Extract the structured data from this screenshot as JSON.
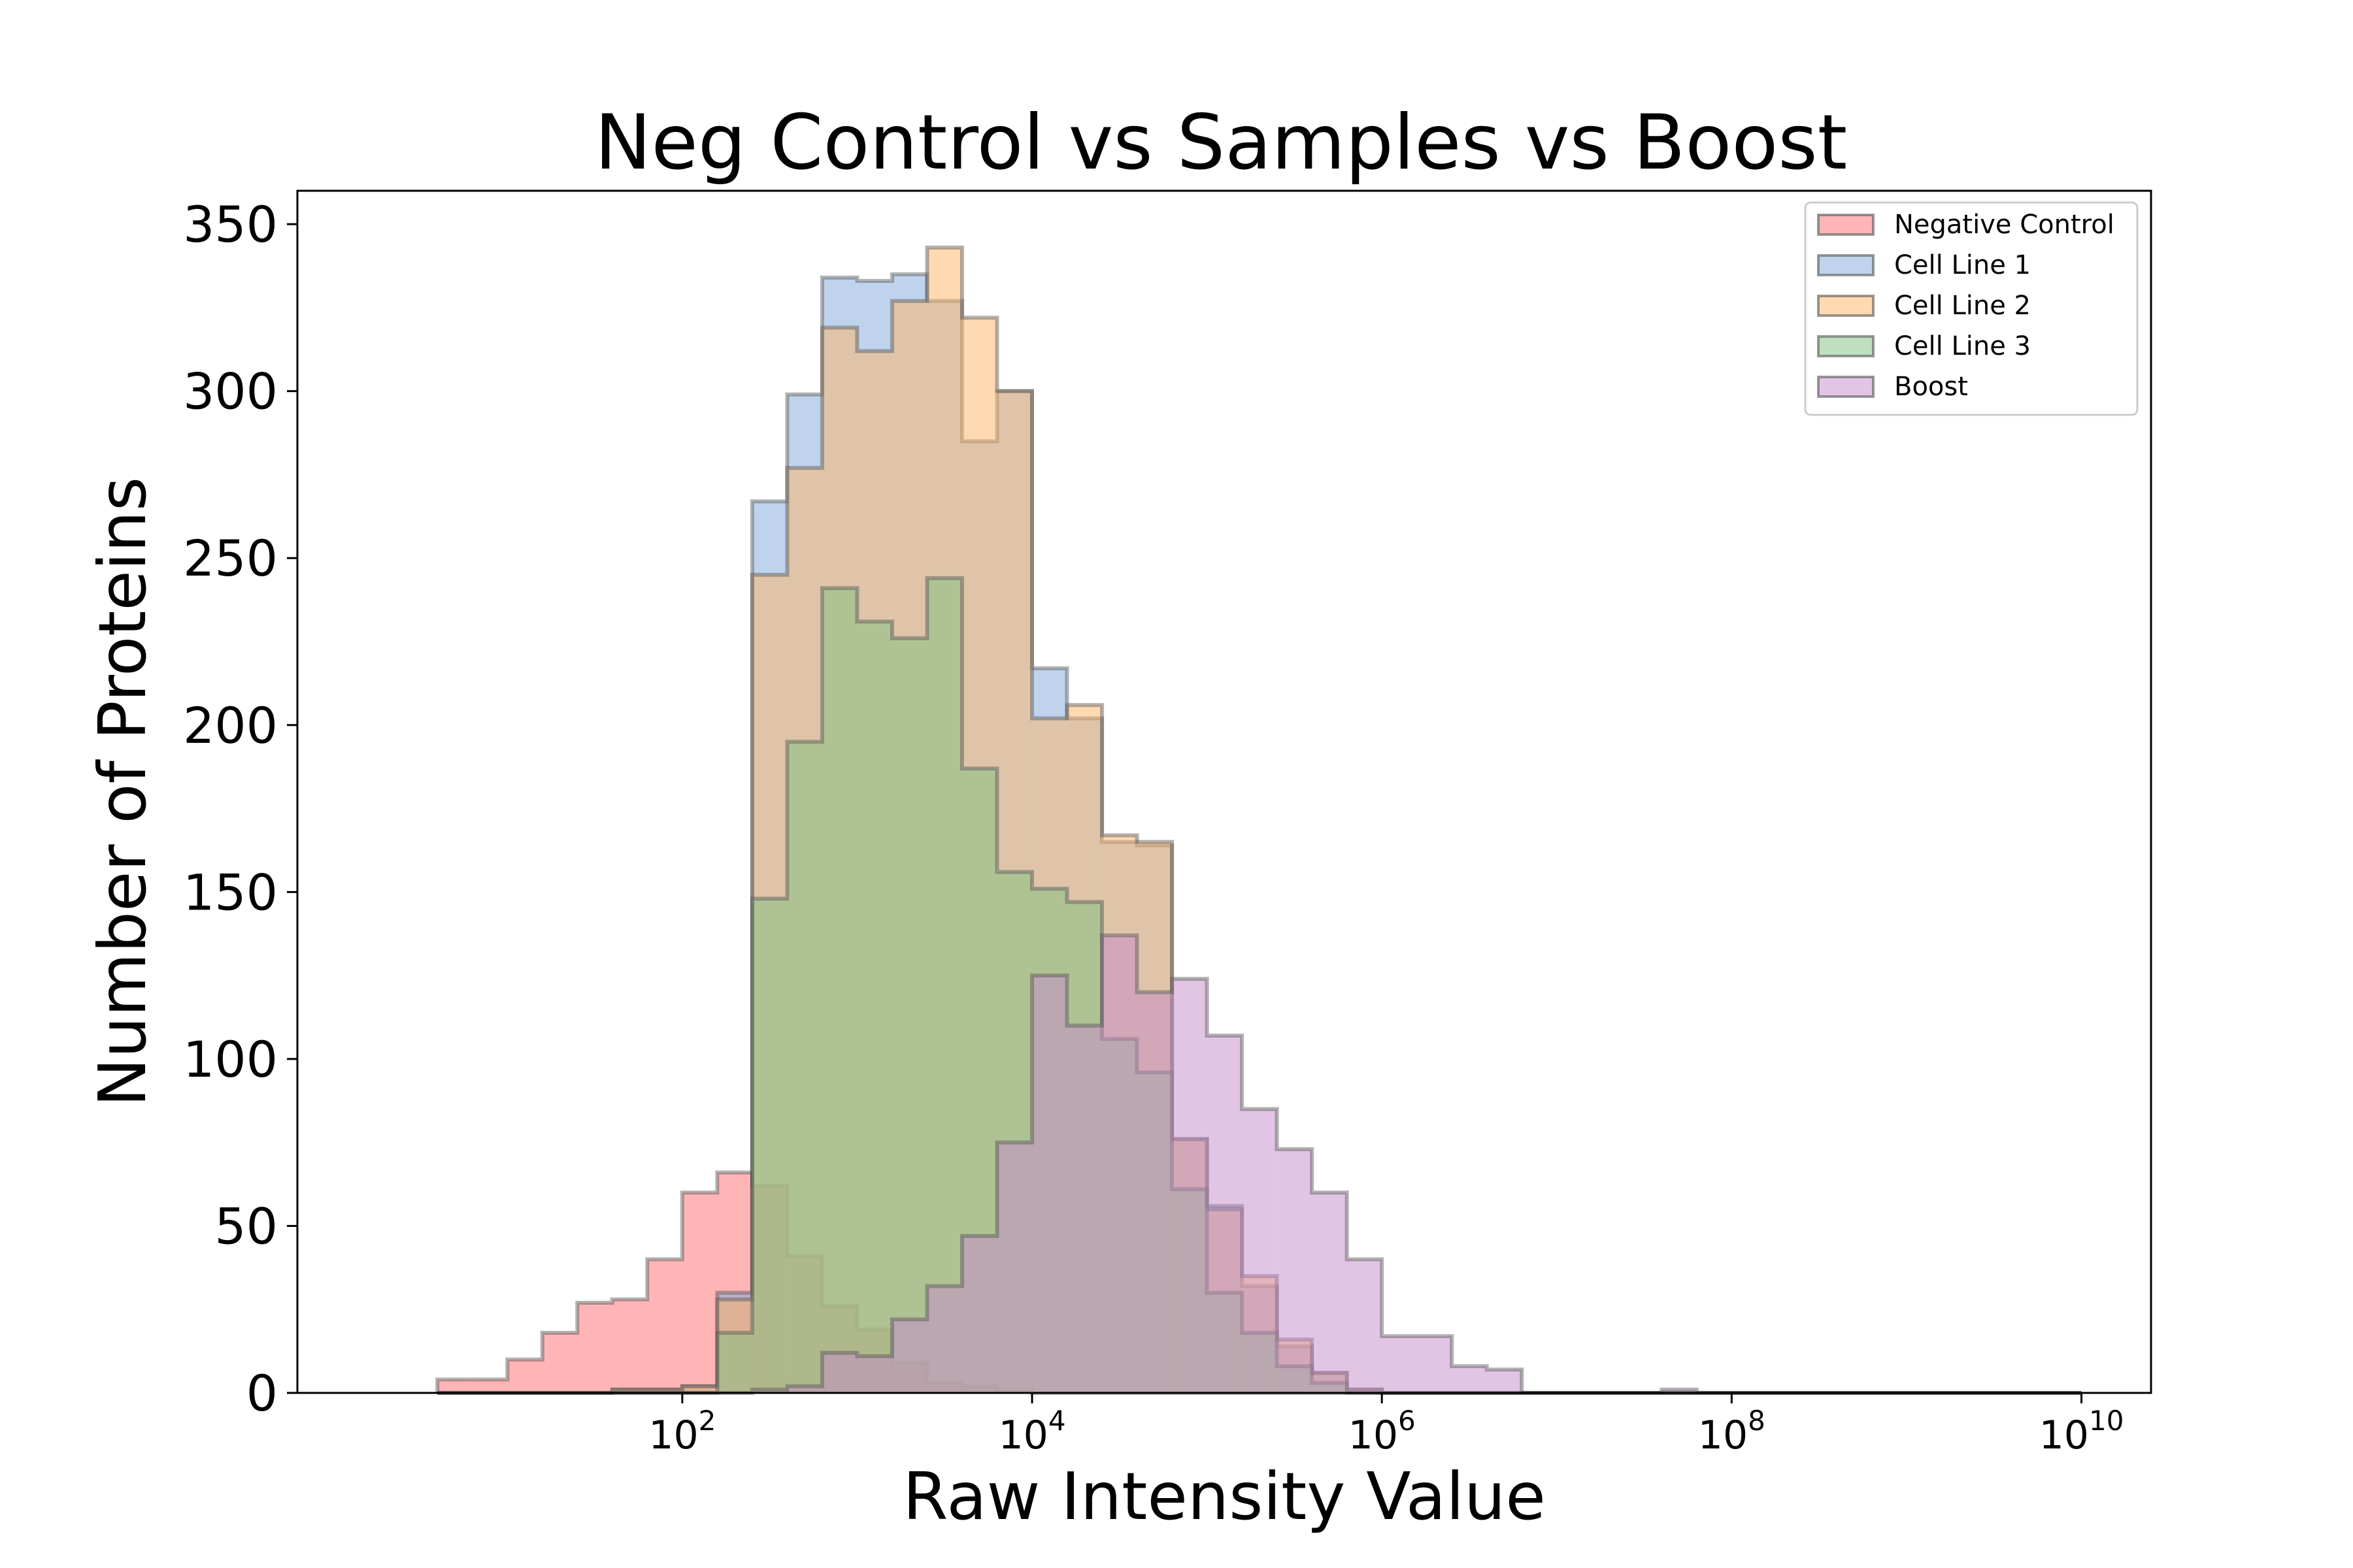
{
  "chart_data": {
    "type": "histogram",
    "title": "Neg Control vs Samples vs Boost",
    "xlabel": "Raw Intensity Value",
    "ylabel": "Number of Proteins",
    "x_scale": "log",
    "xlim": [
      0.63,
      25000000000.0
    ],
    "ylim": [
      0,
      360
    ],
    "bin_edges": [
      3.98,
      6.31,
      10,
      15.85,
      25.12,
      39.81,
      63.1,
      100,
      158.5,
      251.2,
      398.1,
      631,
      1000,
      1585,
      2512,
      3981,
      6310,
      10000,
      15850,
      25120,
      39810,
      63100,
      100000,
      158500,
      251200,
      398100,
      631000,
      1000000,
      1585000,
      2512000,
      3981000,
      6310000,
      10000000,
      15850000,
      25120000,
      39810000,
      63100000,
      100000000,
      158500000,
      251200000,
      398100000,
      631000000,
      1000000000,
      1585000000,
      2512000000,
      3981000000,
      6310000000,
      10000000000
    ],
    "x_ticks": [
      {
        "value": 100,
        "base": "10",
        "exp": "2"
      },
      {
        "value": 10000,
        "base": "10",
        "exp": "4"
      },
      {
        "value": 1000000,
        "base": "10",
        "exp": "6"
      },
      {
        "value": 100000000,
        "base": "10",
        "exp": "8"
      },
      {
        "value": 10000000000,
        "base": "10",
        "exp": "10"
      }
    ],
    "y_ticks": [
      0,
      50,
      100,
      150,
      200,
      250,
      300,
      350
    ],
    "y_tick_labels": [
      "0",
      "50",
      "100",
      "150",
      "200",
      "250",
      "300",
      "350"
    ],
    "legend_position": "top-right",
    "series": [
      {
        "name": "Negative Control",
        "color": "#ff6b6b",
        "values": [
          4,
          4,
          10,
          18,
          27,
          28,
          40,
          60,
          66,
          62,
          41,
          26,
          19,
          9,
          3,
          2,
          1,
          0,
          0,
          0,
          0,
          0,
          0,
          0,
          0,
          0,
          0,
          0,
          0,
          0,
          0,
          0,
          0,
          0,
          0,
          0,
          0,
          0,
          0,
          0,
          0,
          0,
          0,
          0,
          0,
          0,
          0
        ]
      },
      {
        "name": "Cell Line 1",
        "color": "#7fa9d9",
        "values": [
          0,
          0,
          0,
          0,
          0,
          1,
          1,
          2,
          30,
          267,
          299,
          334,
          333,
          335,
          327,
          285,
          300,
          217,
          202,
          165,
          164,
          76,
          56,
          32,
          14,
          6,
          1,
          0,
          0,
          0,
          0,
          0,
          0,
          0,
          0,
          0,
          0,
          0,
          0,
          0,
          0,
          0,
          0,
          0,
          0,
          0,
          0
        ]
      },
      {
        "name": "Cell Line 2",
        "color": "#ffb366",
        "values": [
          0,
          0,
          0,
          0,
          0,
          1,
          1,
          2,
          28,
          245,
          277,
          319,
          312,
          327,
          343,
          322,
          300,
          202,
          206,
          167,
          165,
          76,
          55,
          35,
          16,
          6,
          1,
          0,
          0,
          0,
          0,
          0,
          0,
          0,
          0,
          0,
          0,
          0,
          0,
          0,
          0,
          0,
          0,
          0,
          0,
          0,
          0
        ]
      },
      {
        "name": "Cell Line 3",
        "color": "#7fbf7f",
        "values": [
          0,
          0,
          0,
          0,
          0,
          0,
          0,
          0,
          18,
          148,
          195,
          241,
          231,
          226,
          244,
          187,
          156,
          151,
          147,
          106,
          96,
          61,
          30,
          18,
          8,
          3,
          0,
          0,
          0,
          0,
          0,
          0,
          0,
          0,
          0,
          0,
          0,
          0,
          0,
          0,
          0,
          0,
          0,
          0,
          0,
          0,
          0
        ]
      },
      {
        "name": "Boost",
        "color": "#c58cc9",
        "values": [
          0,
          0,
          0,
          0,
          0,
          0,
          0,
          0,
          0,
          1,
          2,
          12,
          11,
          22,
          32,
          47,
          75,
          125,
          110,
          137,
          120,
          124,
          107,
          85,
          73,
          60,
          40,
          17,
          17,
          8,
          7,
          0,
          0,
          0,
          0,
          1,
          0,
          0,
          0,
          0,
          0,
          0,
          0,
          0,
          0,
          0,
          0
        ]
      }
    ]
  }
}
